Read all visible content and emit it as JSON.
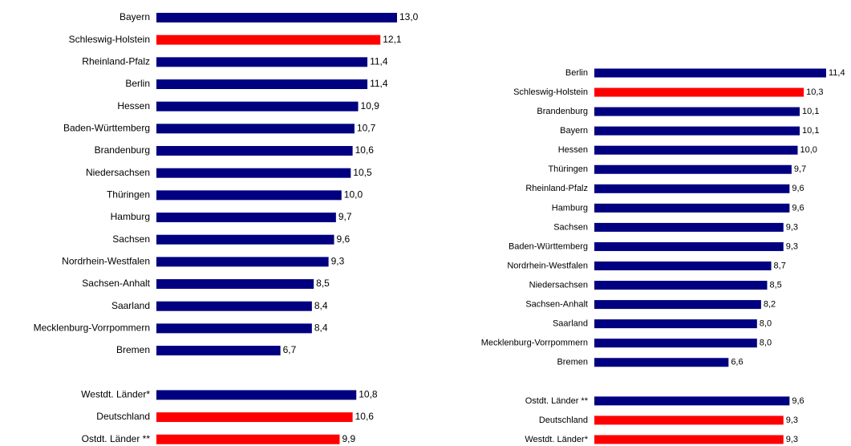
{
  "chart_data": [
    {
      "type": "bar",
      "orientation": "horizontal",
      "categories": [
        "Bayern",
        "Schleswig-Holstein",
        "Rheinland-Pfalz",
        "Berlin",
        "Hessen",
        "Baden-Württemberg",
        "Brandenburg",
        "Niedersachsen",
        "Thüringen",
        "Hamburg",
        "Sachsen",
        "Nordrhein-Westfalen",
        "Sachsen-Anhalt",
        "Saarland",
        "Mecklenburg-Vorrpommern",
        "Bremen",
        null,
        "Westdt. Länder*",
        "Deutschland",
        "Ostdt. Länder **"
      ],
      "values": [
        13.0,
        12.1,
        11.4,
        11.4,
        10.9,
        10.7,
        10.6,
        10.5,
        10.0,
        9.7,
        9.6,
        9.3,
        8.5,
        8.4,
        8.4,
        6.7,
        null,
        10.8,
        10.6,
        9.9
      ],
      "value_labels": [
        "13,0",
        "12,1",
        "11,4",
        "11,4",
        "10,9",
        "10,7",
        "10,6",
        "10,5",
        "10,0",
        "9,7",
        "9,6",
        "9,3",
        "8,5",
        "8,4",
        "8,4",
        "6,7",
        null,
        "10,8",
        "10,6",
        "9,9"
      ],
      "colors": [
        "#000080",
        "#ff0000",
        "#000080",
        "#000080",
        "#000080",
        "#000080",
        "#000080",
        "#000080",
        "#000080",
        "#000080",
        "#000080",
        "#000080",
        "#000080",
        "#000080",
        "#000080",
        "#000080",
        null,
        "#000080",
        "#ff0000",
        "#ff0000"
      ]
    },
    {
      "type": "bar",
      "orientation": "horizontal",
      "categories": [
        "Berlin",
        "Schleswig-Holstein",
        "Brandenburg",
        "Bayern",
        "Hessen",
        "Thüringen",
        "Rheinland-Pfalz",
        "Hamburg",
        "Sachsen",
        "Baden-Württemberg",
        "Nordrhein-Westfalen",
        "Niedersachsen",
        "Sachsen-Anhalt",
        "Saarland",
        "Mecklenburg-Vorrpommern",
        "Bremen",
        null,
        "Ostdt. Länder **",
        "Deutschland",
        "Westdt. Länder*"
      ],
      "values": [
        11.4,
        10.3,
        10.1,
        10.1,
        10.0,
        9.7,
        9.6,
        9.6,
        9.3,
        9.3,
        8.7,
        8.5,
        8.2,
        8.0,
        8.0,
        6.6,
        null,
        9.6,
        9.3,
        9.3
      ],
      "value_labels": [
        "11,4",
        "10,3",
        "10,1",
        "10,1",
        "10,0",
        "9,7",
        "9,6",
        "9,6",
        "9,3",
        "9,3",
        "8,7",
        "8,5",
        "8,2",
        "8,0",
        "8,0",
        "6,6",
        null,
        "9,6",
        "9,3",
        "9,3"
      ],
      "colors": [
        "#000080",
        "#ff0000",
        "#000080",
        "#000080",
        "#000080",
        "#000080",
        "#000080",
        "#000080",
        "#000080",
        "#000080",
        "#000080",
        "#000080",
        "#000080",
        "#000080",
        "#000080",
        "#000080",
        null,
        "#000080",
        "#ff0000",
        "#ff0000"
      ]
    }
  ]
}
